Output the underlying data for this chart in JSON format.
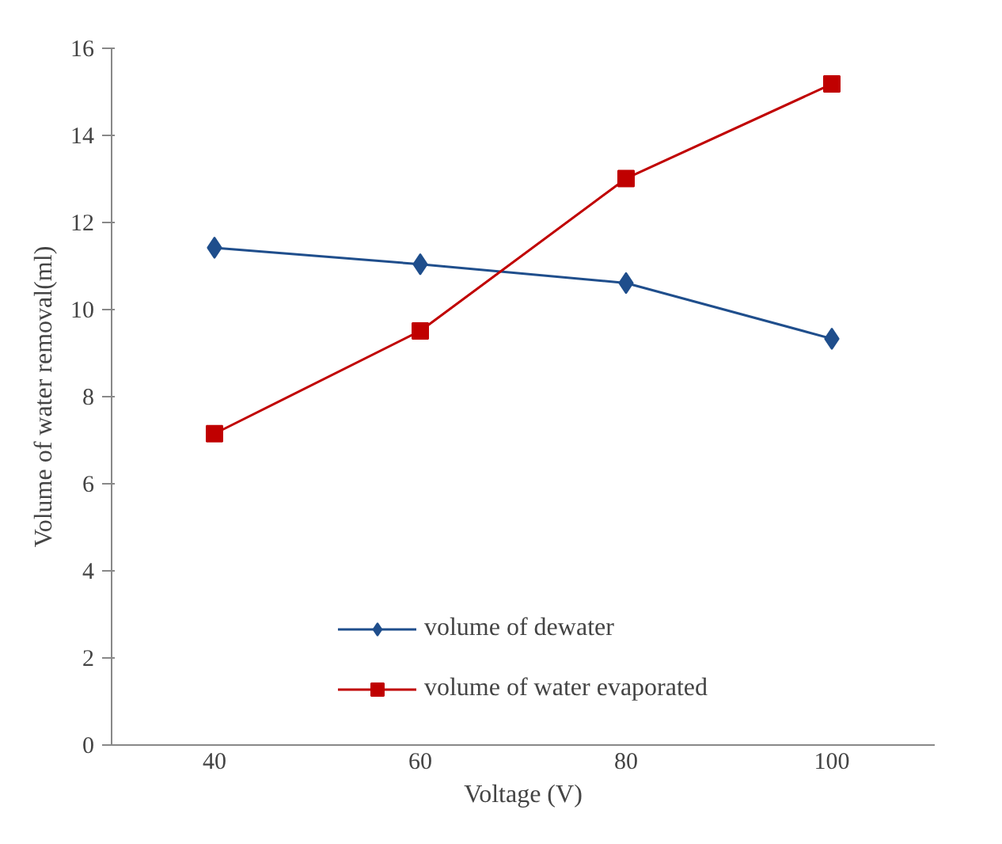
{
  "chart_data": {
    "type": "line",
    "xlabel": "Voltage (V)",
    "ylabel": "Volume of water removal(ml)",
    "categories": [
      "40",
      "60",
      "80",
      "100"
    ],
    "series": [
      {
        "name": "volume of dewater",
        "color": "#1f4e8c",
        "marker": "diamond",
        "values": [
          11.42,
          11.04,
          10.61,
          9.33
        ]
      },
      {
        "name": "volume of water evaporated",
        "color": "#c00000",
        "marker": "square",
        "values": [
          7.15,
          9.51,
          13.01,
          15.18
        ]
      }
    ],
    "ylim": [
      0,
      16
    ],
    "yticks": [
      0,
      2,
      4,
      6,
      8,
      10,
      12,
      14,
      16
    ],
    "grid": false,
    "legend": "bottom",
    "line_style": "solid"
  }
}
